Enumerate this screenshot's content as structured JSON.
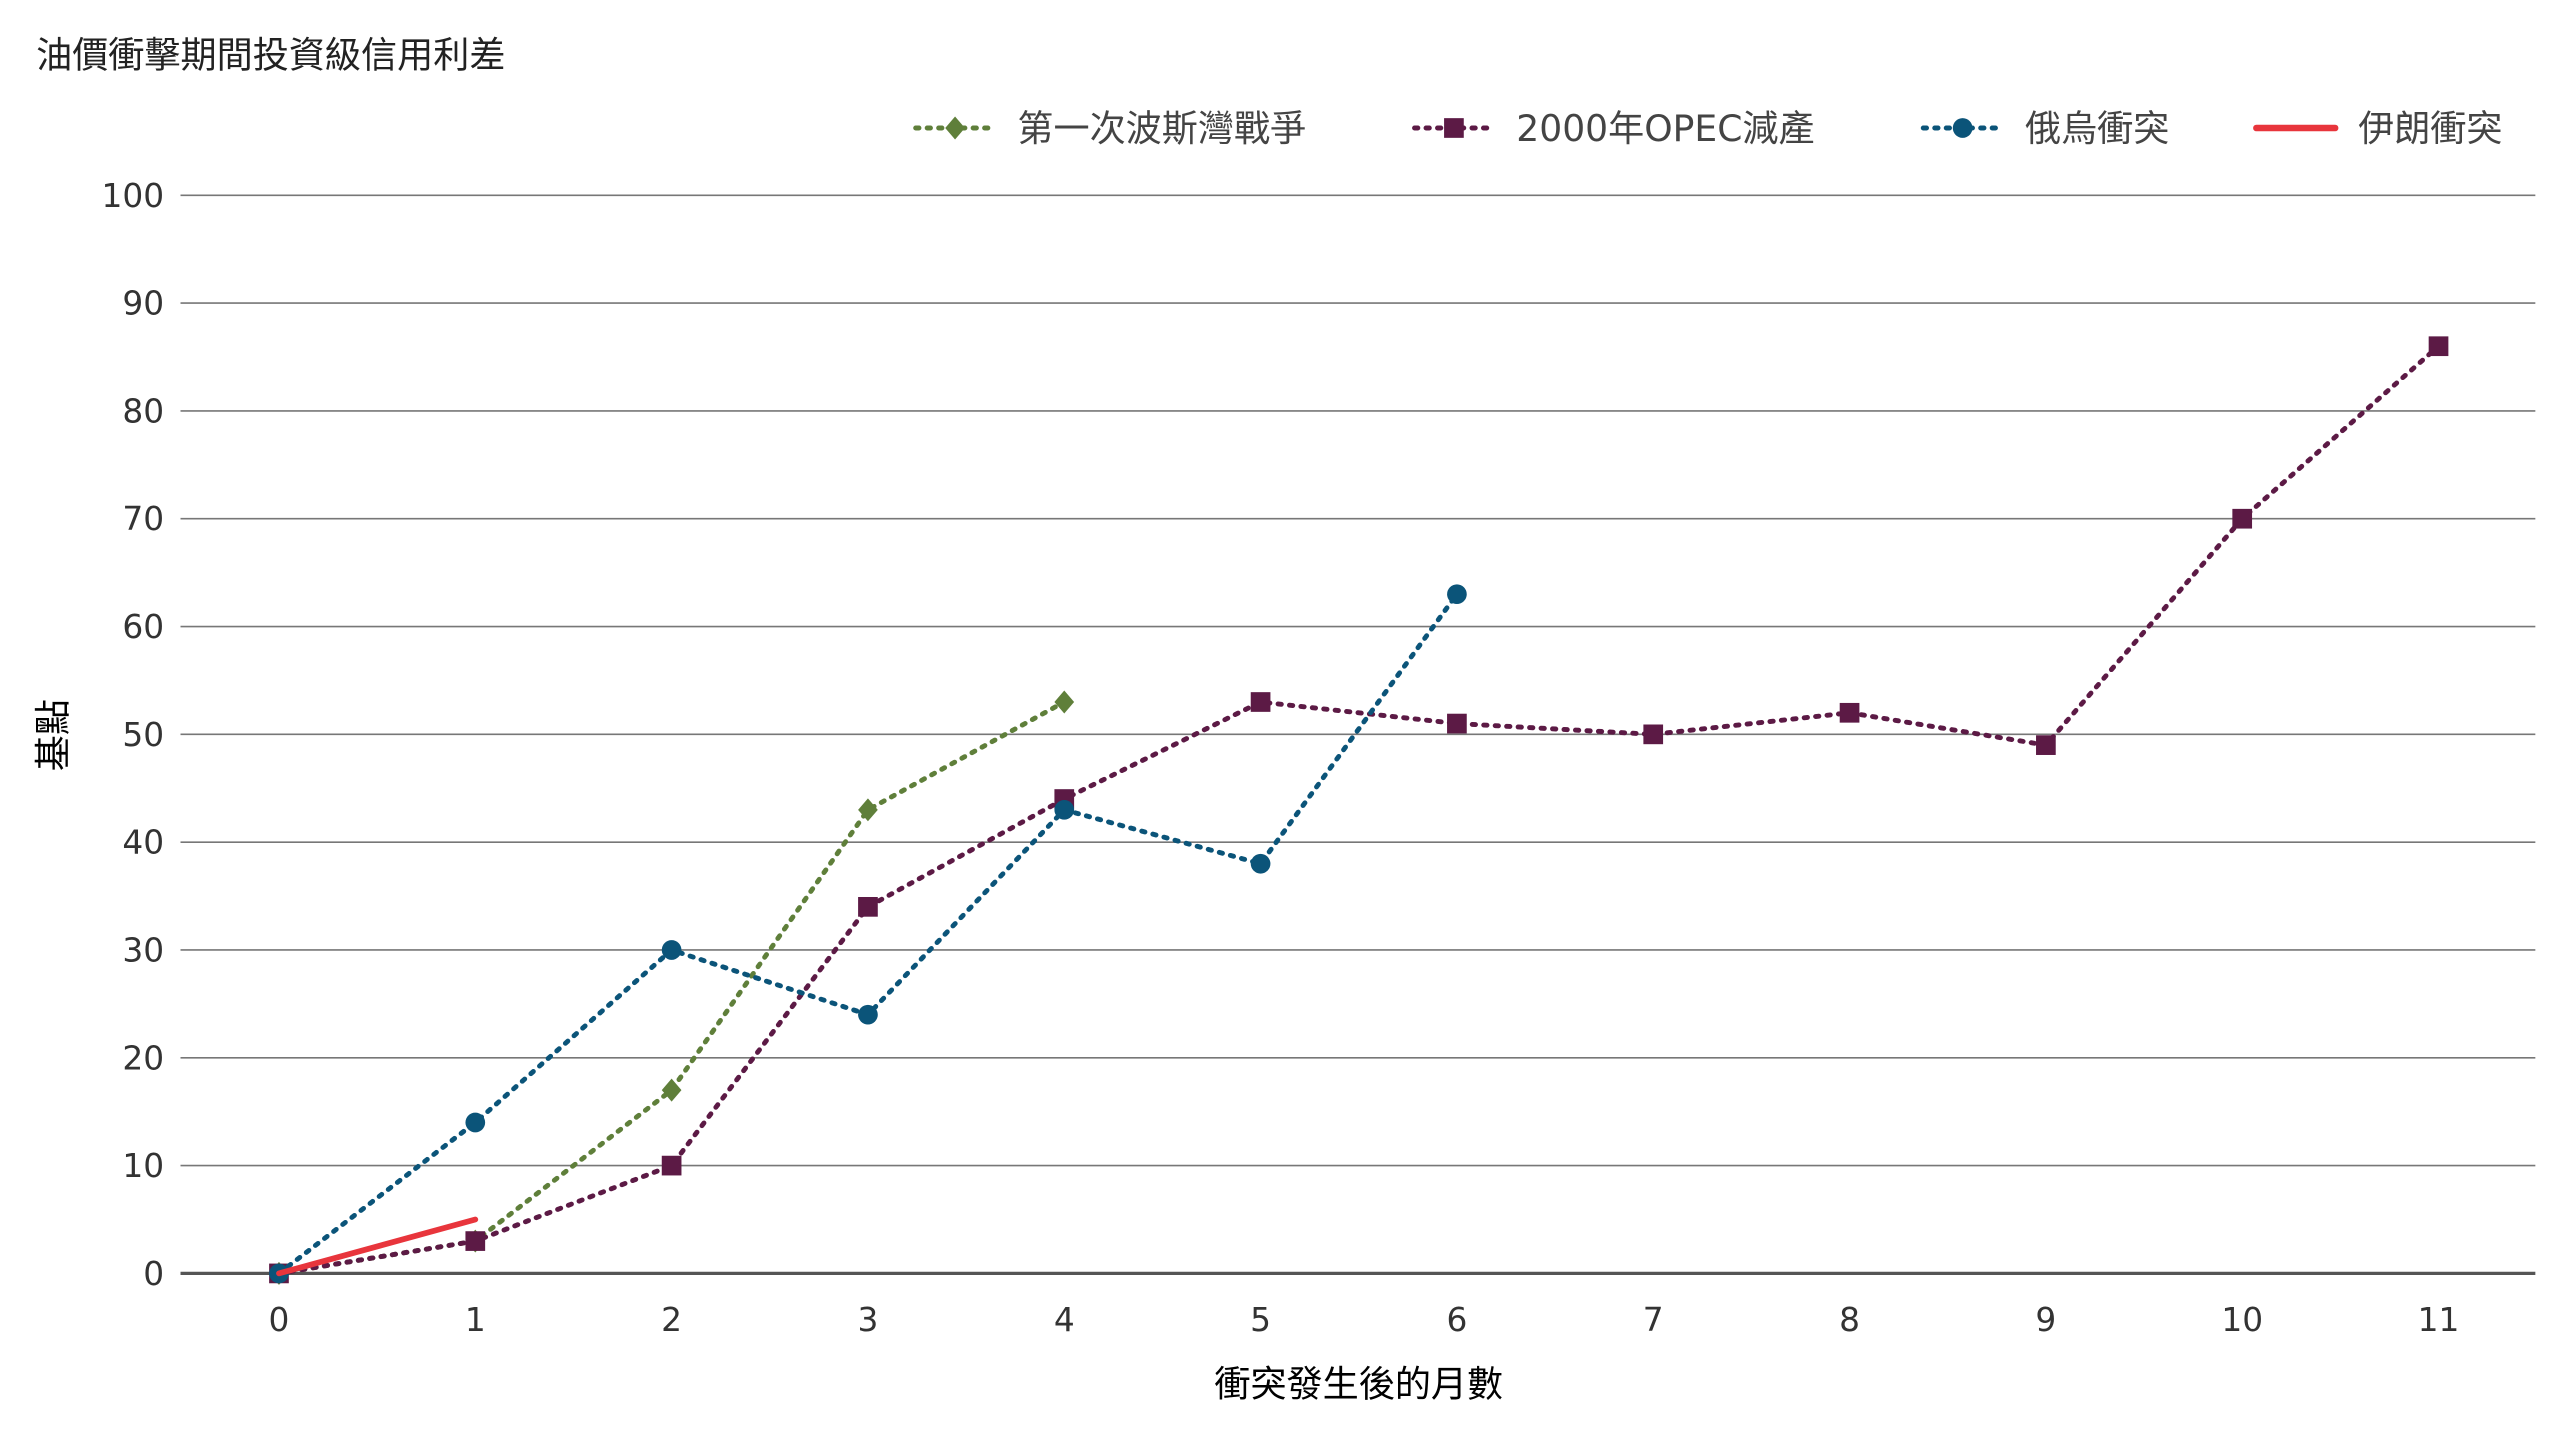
{
  "chart_data": {
    "type": "line",
    "title": "油價衝擊期間投資級信用利差",
    "xlabel": "衝突發生後的月數",
    "ylabel": "基點",
    "ylim": [
      0,
      100
    ],
    "xlim": [
      0,
      11
    ],
    "yticks": [
      0,
      10,
      20,
      30,
      40,
      50,
      60,
      70,
      80,
      90,
      100
    ],
    "xticks": [
      0,
      1,
      2,
      3,
      4,
      5,
      6,
      7,
      8,
      9,
      10,
      11
    ],
    "grid": "horizontal",
    "legend_position": "top-right",
    "series": [
      {
        "name": "第一次波斯灣戰爭",
        "color": "#5f7f3a",
        "marker": "diamond",
        "style": "dotted",
        "x": [
          0,
          1,
          2,
          3,
          4
        ],
        "y": [
          0,
          3,
          17,
          43,
          53
        ]
      },
      {
        "name": "2000年OPEC減產",
        "color": "#5c1a45",
        "marker": "square",
        "style": "dotted",
        "x": [
          0,
          1,
          2,
          3,
          4,
          5,
          6,
          7,
          8,
          9,
          10,
          11
        ],
        "y": [
          0,
          3,
          10,
          34,
          44,
          53,
          51,
          50,
          52,
          49,
          70,
          86
        ]
      },
      {
        "name": "俄烏衝突",
        "color": "#0b5479",
        "marker": "circle",
        "style": "dotted",
        "x": [
          0,
          1,
          2,
          3,
          4,
          5,
          6
        ],
        "y": [
          0,
          14,
          30,
          24,
          43,
          38,
          63
        ]
      },
      {
        "name": "伊朗衝突",
        "color": "#e8353c",
        "marker": "none",
        "style": "solid",
        "x": [
          0,
          1
        ],
        "y": [
          0,
          5
        ]
      }
    ]
  }
}
